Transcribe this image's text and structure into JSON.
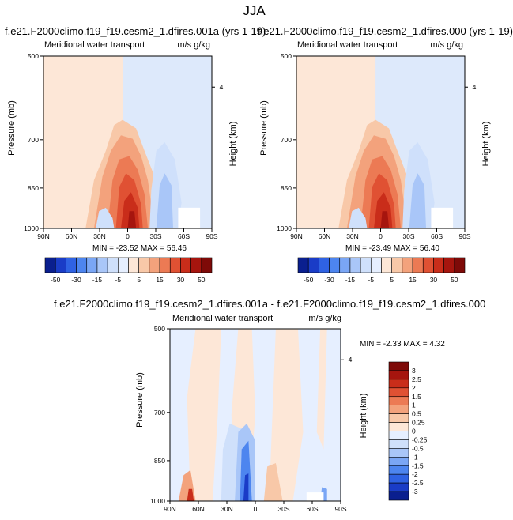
{
  "page_title": "JJA",
  "chart_data": [
    {
      "type": "heatmap",
      "title": "f.e21.F2000climo.f19_f19.cesm2_1.dfires.001a (yrs 1-19)",
      "subtitle_left": "Meridional water transport",
      "subtitle_right": "m/s g/kg",
      "ylabel": "Pressure (mb)",
      "ylabel_right": "Height (km)",
      "x_ticks": [
        "90N",
        "60N",
        "30N",
        "0",
        "30S",
        "60S",
        "90S"
      ],
      "y_ticks": [
        "500",
        "700",
        "850",
        "1000"
      ],
      "y_ticks_right": [
        "4"
      ],
      "stats": "MIN = -23.52   MAX =  56.46",
      "fill_hint": "positive transport in the northern tropics with a strong maximum just south of the equator near the surface; weak negative values in the southern hemisphere"
    },
    {
      "type": "heatmap",
      "title": "f.e21.F2000climo.f19_f19.cesm2_1.dfires.000 (yrs 1-19)",
      "subtitle_left": "Meridional water transport",
      "subtitle_right": "m/s g/kg",
      "ylabel": "Pressure (mb)",
      "ylabel_right": "Height (km)",
      "x_ticks": [
        "90N",
        "60N",
        "30N",
        "0",
        "30S",
        "60S",
        "90S"
      ],
      "y_ticks": [
        "500",
        "700",
        "850",
        "1000"
      ],
      "y_ticks_right": [
        "4"
      ],
      "stats": "MIN = -23.49   MAX =  56.40"
    },
    {
      "type": "heatmap",
      "title": "f.e21.F2000climo.f19_f19.cesm2_1.dfires.001a - f.e21.F2000climo.f19_f19.cesm2_1.dfires.000",
      "subtitle_left": "Meridional water transport",
      "subtitle_right": "m/s g/kg",
      "ylabel": "Pressure (mb)",
      "ylabel_right": "Height (km)",
      "x_ticks": [
        "90N",
        "60N",
        "30N",
        "0",
        "30S",
        "60S",
        "90S"
      ],
      "y_ticks": [
        "500",
        "700",
        "850",
        "1000"
      ],
      "y_ticks_right": [
        "4"
      ],
      "stats": "MIN = -2.33  MAX =  4.32"
    }
  ],
  "colorbar_main": {
    "labels": [
      "-50",
      "-30",
      "-15",
      "-5",
      "5",
      "15",
      "30",
      "50"
    ],
    "colors": [
      "#0a1f8f",
      "#1a3cc7",
      "#2f62e3",
      "#4d85ef",
      "#7aa6f5",
      "#a9c6f8",
      "#cfe0fb",
      "#e6efff",
      "#fde7d7",
      "#f8c8a8",
      "#f3a27c",
      "#ec7a54",
      "#e05133",
      "#c92d1a",
      "#a6150e",
      "#7e0a08"
    ]
  },
  "colorbar_diff": {
    "labels": [
      "3",
      "2.5",
      "2",
      "1.5",
      "1",
      "0.5",
      "0.25",
      "0",
      "-0.25",
      "-0.5",
      "-1",
      "-1.5",
      "-2",
      "-2.5",
      "-3"
    ],
    "colors": [
      "#7e0a08",
      "#a6150e",
      "#c92d1a",
      "#e05133",
      "#ec7a54",
      "#f3a27c",
      "#f8c8a8",
      "#fde7d7",
      "#e6efff",
      "#cfe0fb",
      "#a9c6f8",
      "#7aa6f5",
      "#4d85ef",
      "#2f62e3",
      "#1a3cc7",
      "#0a1f8f"
    ]
  }
}
